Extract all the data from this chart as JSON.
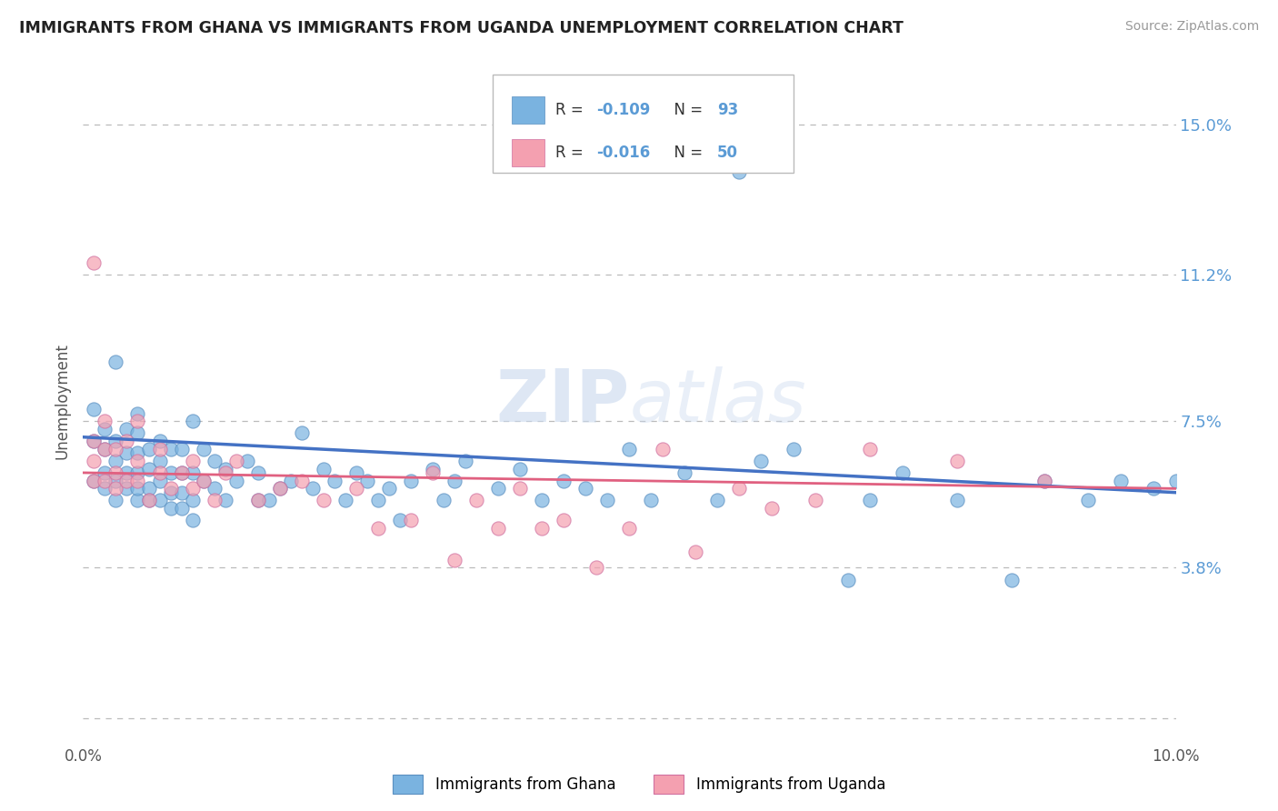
{
  "title": "IMMIGRANTS FROM GHANA VS IMMIGRANTS FROM UGANDA UNEMPLOYMENT CORRELATION CHART",
  "source": "Source: ZipAtlas.com",
  "ylabel": "Unemployment",
  "xlim": [
    0.0,
    0.1
  ],
  "ylim": [
    -0.005,
    0.165
  ],
  "yticks": [
    0.038,
    0.075,
    0.112,
    0.15
  ],
  "ytick_labels": [
    "3.8%",
    "7.5%",
    "11.2%",
    "15.0%"
  ],
  "xticks": [
    0.0,
    0.02,
    0.04,
    0.06,
    0.08,
    0.1
  ],
  "xtick_labels": [
    "0.0%",
    "",
    "",
    "",
    "",
    "10.0%"
  ],
  "ghana_color": "#7ab3e0",
  "ghana_edge_color": "#5a8fc0",
  "uganda_color": "#f4a0b0",
  "uganda_edge_color": "#d070a0",
  "ghana_R": -0.109,
  "ghana_N": 93,
  "uganda_R": -0.016,
  "uganda_N": 50,
  "ghana_line_color": "#4472c4",
  "uganda_line_color": "#e06080",
  "background_color": "#ffffff",
  "grid_color": "#bbbbbb",
  "watermark": "ZIPatlas",
  "ghana_line_start_y": 0.071,
  "ghana_line_end_y": 0.057,
  "uganda_line_start_y": 0.062,
  "uganda_line_end_y": 0.058,
  "ghana_scatter_x": [
    0.001,
    0.001,
    0.001,
    0.002,
    0.002,
    0.002,
    0.002,
    0.003,
    0.003,
    0.003,
    0.003,
    0.003,
    0.004,
    0.004,
    0.004,
    0.004,
    0.005,
    0.005,
    0.005,
    0.005,
    0.005,
    0.005,
    0.006,
    0.006,
    0.006,
    0.006,
    0.007,
    0.007,
    0.007,
    0.007,
    0.008,
    0.008,
    0.008,
    0.008,
    0.009,
    0.009,
    0.009,
    0.009,
    0.01,
    0.01,
    0.01,
    0.01,
    0.011,
    0.011,
    0.012,
    0.012,
    0.013,
    0.013,
    0.014,
    0.015,
    0.016,
    0.016,
    0.017,
    0.018,
    0.019,
    0.02,
    0.021,
    0.022,
    0.023,
    0.024,
    0.025,
    0.026,
    0.027,
    0.028,
    0.029,
    0.03,
    0.032,
    0.033,
    0.034,
    0.035,
    0.038,
    0.04,
    0.042,
    0.044,
    0.046,
    0.048,
    0.05,
    0.052,
    0.055,
    0.058,
    0.06,
    0.062,
    0.065,
    0.07,
    0.072,
    0.075,
    0.08,
    0.085,
    0.088,
    0.092,
    0.095,
    0.098,
    0.1
  ],
  "ghana_scatter_y": [
    0.06,
    0.07,
    0.078,
    0.058,
    0.062,
    0.068,
    0.073,
    0.055,
    0.06,
    0.065,
    0.07,
    0.09,
    0.058,
    0.062,
    0.067,
    0.073,
    0.055,
    0.058,
    0.062,
    0.067,
    0.072,
    0.077,
    0.055,
    0.058,
    0.063,
    0.068,
    0.055,
    0.06,
    0.065,
    0.07,
    0.053,
    0.057,
    0.062,
    0.068,
    0.053,
    0.057,
    0.062,
    0.068,
    0.05,
    0.055,
    0.062,
    0.075,
    0.06,
    0.068,
    0.058,
    0.065,
    0.055,
    0.063,
    0.06,
    0.065,
    0.055,
    0.062,
    0.055,
    0.058,
    0.06,
    0.072,
    0.058,
    0.063,
    0.06,
    0.055,
    0.062,
    0.06,
    0.055,
    0.058,
    0.05,
    0.06,
    0.063,
    0.055,
    0.06,
    0.065,
    0.058,
    0.063,
    0.055,
    0.06,
    0.058,
    0.055,
    0.068,
    0.055,
    0.062,
    0.055,
    0.138,
    0.065,
    0.068,
    0.035,
    0.055,
    0.062,
    0.055,
    0.035,
    0.06,
    0.055,
    0.06,
    0.058,
    0.06
  ],
  "uganda_scatter_x": [
    0.001,
    0.001,
    0.001,
    0.001,
    0.002,
    0.002,
    0.002,
    0.003,
    0.003,
    0.003,
    0.004,
    0.004,
    0.005,
    0.005,
    0.005,
    0.006,
    0.007,
    0.007,
    0.008,
    0.009,
    0.01,
    0.01,
    0.011,
    0.012,
    0.013,
    0.014,
    0.016,
    0.018,
    0.02,
    0.022,
    0.025,
    0.027,
    0.03,
    0.032,
    0.034,
    0.036,
    0.038,
    0.04,
    0.042,
    0.044,
    0.047,
    0.05,
    0.053,
    0.056,
    0.06,
    0.063,
    0.067,
    0.072,
    0.08,
    0.088
  ],
  "uganda_scatter_y": [
    0.06,
    0.065,
    0.07,
    0.115,
    0.06,
    0.068,
    0.075,
    0.058,
    0.062,
    0.068,
    0.06,
    0.07,
    0.06,
    0.065,
    0.075,
    0.055,
    0.062,
    0.068,
    0.058,
    0.062,
    0.058,
    0.065,
    0.06,
    0.055,
    0.062,
    0.065,
    0.055,
    0.058,
    0.06,
    0.055,
    0.058,
    0.048,
    0.05,
    0.062,
    0.04,
    0.055,
    0.048,
    0.058,
    0.048,
    0.05,
    0.038,
    0.048,
    0.068,
    0.042,
    0.058,
    0.053,
    0.055,
    0.068,
    0.065,
    0.06
  ]
}
